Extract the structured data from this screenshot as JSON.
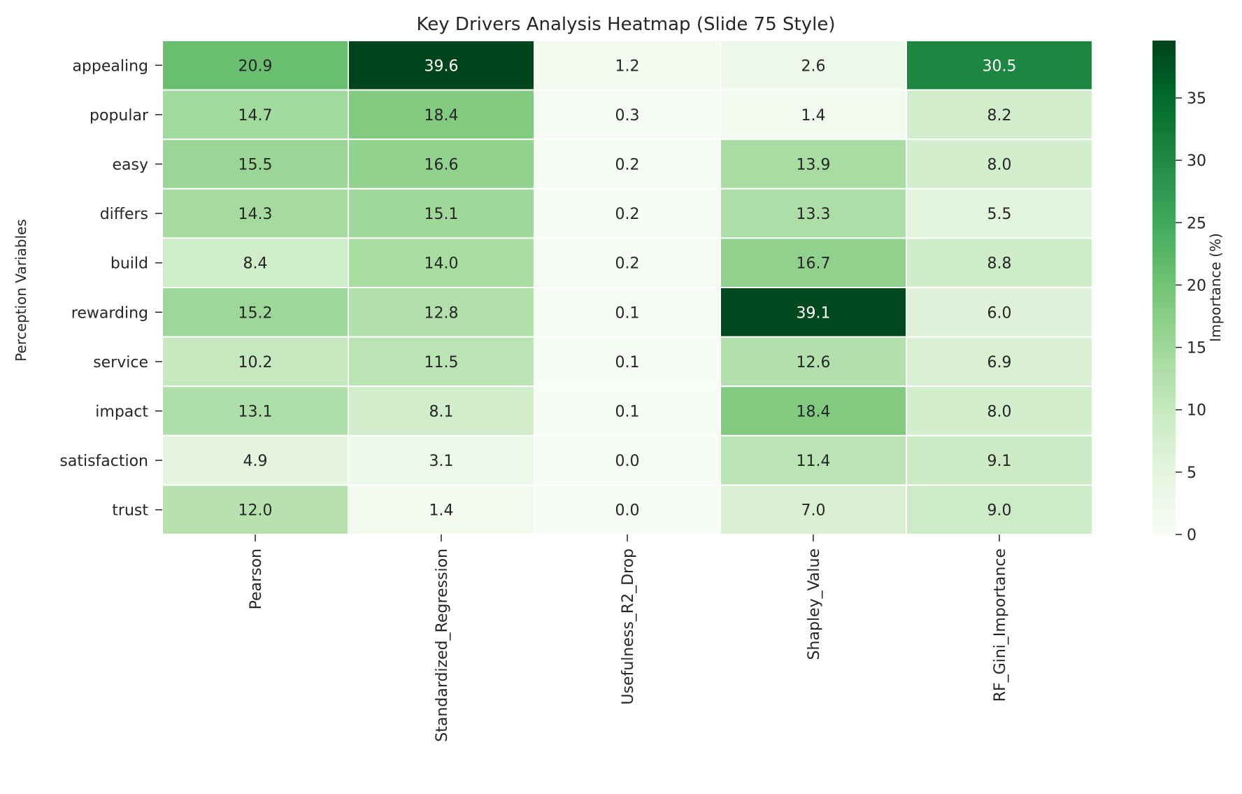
{
  "chart_data": {
    "type": "heatmap",
    "title": "Key Drivers Analysis Heatmap (Slide 75 Style)",
    "xlabel": "",
    "ylabel": "Perception Variables",
    "columns": [
      "Pearson",
      "Standardized_Regression",
      "Usefulness_R2_Drop",
      "Shapley_Value",
      "RF_Gini_Importance"
    ],
    "rows": [
      "appealing",
      "popular",
      "easy",
      "differs",
      "build",
      "rewarding",
      "service",
      "impact",
      "satisfaction",
      "trust"
    ],
    "values": [
      [
        20.9,
        39.6,
        1.2,
        2.6,
        30.5
      ],
      [
        14.7,
        18.4,
        0.3,
        1.4,
        8.2
      ],
      [
        15.5,
        16.6,
        0.2,
        13.9,
        8.0
      ],
      [
        14.3,
        15.1,
        0.2,
        13.3,
        5.5
      ],
      [
        8.4,
        14.0,
        0.2,
        16.7,
        8.8
      ],
      [
        15.2,
        12.8,
        0.1,
        39.1,
        6.0
      ],
      [
        10.2,
        11.5,
        0.1,
        12.6,
        6.9
      ],
      [
        13.1,
        8.1,
        0.1,
        18.4,
        8.0
      ],
      [
        4.9,
        3.1,
        0.0,
        11.4,
        9.1
      ],
      [
        12.0,
        1.4,
        0.0,
        7.0,
        9.0
      ]
    ],
    "colormap": "Greens",
    "vmin": 0,
    "vmax": 39.6,
    "colorbar": {
      "label": "Importance (%)",
      "ticks": [
        0,
        5,
        10,
        15,
        20,
        25,
        30,
        35
      ]
    },
    "annotations": "values shown with one decimal"
  }
}
